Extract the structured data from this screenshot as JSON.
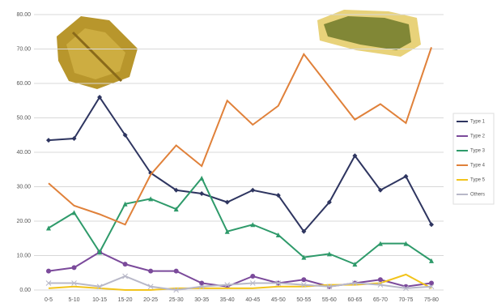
{
  "chart_data": {
    "type": "line",
    "categories": [
      "0-5",
      "5-10",
      "10-15",
      "15-20",
      "20-25",
      "25-30",
      "30-35",
      "35-40",
      "40-45",
      "45-50",
      "50-55",
      "55-60",
      "60-65",
      "65-70",
      "70-75",
      "75-80"
    ],
    "series": [
      {
        "name": "Type 1",
        "color": "#2e3560",
        "marker": "diamond",
        "values": [
          43.5,
          44,
          56,
          45,
          34,
          29,
          28,
          25.5,
          29,
          27.5,
          17,
          25.5,
          39,
          29,
          33,
          19
        ]
      },
      {
        "name": "Type 2",
        "color": "#7b4a9b",
        "marker": "circle",
        "values": [
          5.5,
          6.5,
          11,
          7.5,
          5.5,
          5.5,
          2,
          1,
          4,
          2,
          3,
          1,
          2,
          3,
          1,
          2
        ]
      },
      {
        "name": "Type 3",
        "color": "#2e9a6a",
        "marker": "triangle",
        "values": [
          18,
          22.5,
          11,
          25,
          26.5,
          23.5,
          32.5,
          17,
          19,
          16,
          9.5,
          10.5,
          7.5,
          13.5,
          13.5,
          8.5
        ]
      },
      {
        "name": "Type 4",
        "color": "#e0813a",
        "marker": "none",
        "values": [
          31,
          24.5,
          22,
          19,
          33.5,
          42,
          36,
          55,
          48,
          53.5,
          68.5,
          59,
          49.5,
          54,
          48.5,
          70.5
        ]
      },
      {
        "name": "Type 5",
        "color": "#f2c41c",
        "marker": "none",
        "values": [
          0.5,
          1,
          0.5,
          0,
          0,
          0.5,
          0.5,
          0.5,
          0.5,
          1,
          1,
          1.5,
          1.5,
          2,
          4.5,
          0.5
        ]
      },
      {
        "name": "Others",
        "color": "#b8b8c8",
        "marker": "x",
        "values": [
          2,
          2,
          1,
          4,
          1,
          0,
          1,
          1.5,
          2,
          2,
          1.5,
          1,
          2,
          1.5,
          0.5,
          1
        ]
      }
    ],
    "ylim": [
      0,
      80
    ],
    "yticks": [
      {
        "value": 0,
        "label": "0.00"
      },
      {
        "value": 10,
        "label": "10.00"
      },
      {
        "value": 20,
        "label": "20.00"
      },
      {
        "value": 30,
        "label": "30.00"
      },
      {
        "value": 40,
        "label": "40.00"
      },
      {
        "value": 50,
        "label": "50.00"
      },
      {
        "value": 60,
        "label": "60.00"
      },
      {
        "value": 70,
        "label": "70.00"
      },
      {
        "value": 80,
        "label": "80.00"
      }
    ],
    "grid": true,
    "legend": "right"
  }
}
